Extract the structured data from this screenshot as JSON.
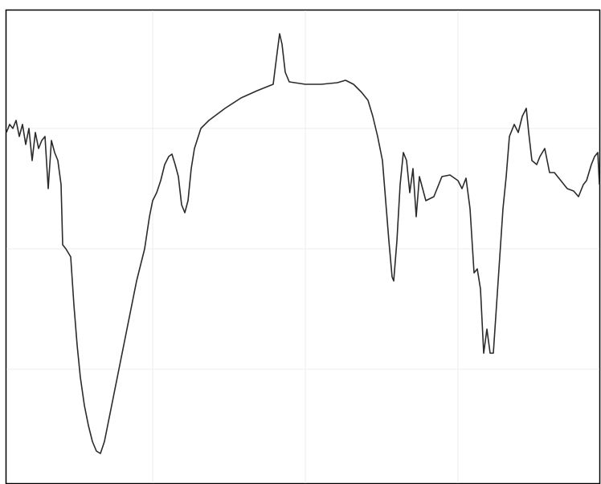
{
  "chart_data": {
    "type": "line",
    "color": "#2b2b2b",
    "x": [
      8,
      12,
      16,
      20,
      24,
      28,
      32,
      36,
      40,
      44,
      48,
      52,
      56,
      60,
      64,
      68,
      72,
      76,
      78,
      82,
      88,
      92,
      96,
      100,
      105,
      110,
      115,
      120,
      125,
      130,
      135,
      140,
      150,
      160,
      170,
      180,
      186,
      190,
      195,
      200,
      205,
      210,
      214,
      218,
      222,
      226,
      230,
      234,
      238,
      242,
      250,
      260,
      280,
      300,
      320,
      340,
      345,
      348,
      351,
      355,
      360,
      380,
      400,
      420,
      430,
      440,
      450,
      458,
      464,
      470,
      476,
      480,
      484,
      488,
      490,
      494,
      498,
      502,
      506,
      510,
      514,
      518,
      522,
      526,
      530,
      540,
      550,
      560,
      570,
      575,
      580,
      585,
      590,
      594,
      598,
      602,
      606,
      610,
      614,
      618,
      622,
      626,
      630,
      634,
      640,
      645,
      650,
      655,
      658,
      662,
      668,
      672,
      678,
      684,
      690,
      698,
      706,
      714,
      720,
      726,
      730,
      736,
      740,
      744,
      746
    ],
    "values": [
      438,
      448,
      443,
      453,
      433,
      448,
      423,
      443,
      403,
      438,
      418,
      428,
      433,
      368,
      428,
      413,
      403,
      373,
      298,
      293,
      283,
      223,
      173,
      133,
      98,
      73,
      53,
      41,
      38,
      53,
      78,
      103,
      153,
      203,
      253,
      293,
      333,
      353,
      363,
      378,
      398,
      408,
      411,
      398,
      383,
      348,
      338,
      353,
      393,
      418,
      443,
      453,
      468,
      481,
      490,
      498,
      538,
      561,
      548,
      513,
      501,
      498,
      498,
      500,
      503,
      498,
      488,
      478,
      458,
      433,
      403,
      353,
      303,
      258,
      253,
      303,
      373,
      413,
      403,
      363,
      393,
      333,
      383,
      368,
      353,
      358,
      383,
      385,
      378,
      368,
      381,
      343,
      263,
      268,
      243,
      163,
      193,
      163,
      163,
      223,
      283,
      343,
      383,
      433,
      448,
      438,
      458,
      468,
      438,
      403,
      398,
      408,
      418,
      388,
      388,
      378,
      368,
      365,
      358,
      373,
      378,
      398,
      408,
      413,
      373
    ]
  }
}
